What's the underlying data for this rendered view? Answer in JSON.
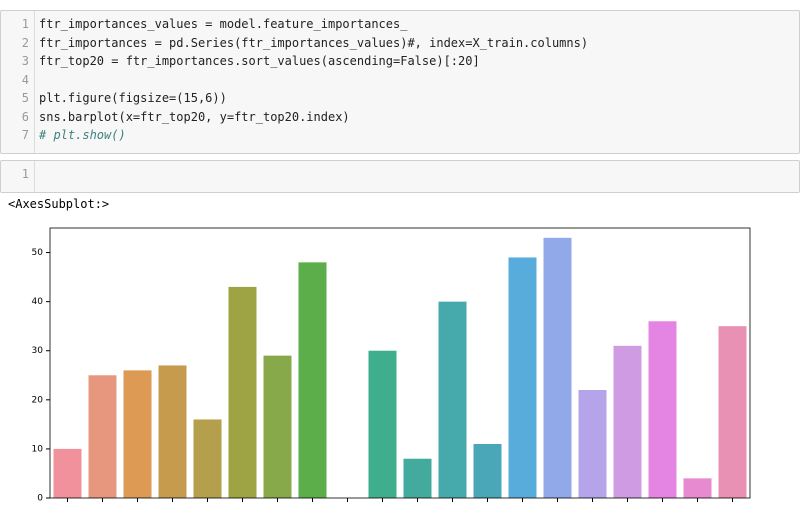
{
  "cells": [
    {
      "lines": [
        {
          "n": 1,
          "code": "ftr_importances_values = model.feature_importances_"
        },
        {
          "n": 2,
          "code": "ftr_importances = pd.Series(ftr_importances_values)#, index=X_train.columns)"
        },
        {
          "n": 3,
          "code": "ftr_top20 = ftr_importances.sort_values(ascending=False)[:20]"
        },
        {
          "n": 4
        },
        {
          "n": 5,
          "code": "plt.figure(figsize=(15,6))"
        },
        {
          "n": 6,
          "code": "sns.barplot(x=ftr_top20, y=ftr_top20.index)"
        },
        {
          "n": 7,
          "code": "# plt.show()"
        }
      ]
    },
    {
      "lines": [
        {
          "n": 1
        }
      ]
    }
  ],
  "output": "<AxesSubplot:>",
  "chart_data": {
    "type": "bar",
    "categories": [
      null,
      null,
      null,
      null,
      null,
      null,
      null,
      null,
      null,
      null,
      null,
      null,
      null,
      null,
      null,
      null,
      null,
      null,
      null,
      null
    ],
    "values": [
      10,
      25,
      26,
      27,
      16,
      43,
      29,
      48,
      0,
      30,
      8,
      40,
      11,
      49,
      53,
      22,
      31,
      36,
      4,
      35
    ],
    "colors": [
      "#f0919b",
      "#e8977f",
      "#dd9a55",
      "#c79b4d",
      "#b4a04c",
      "#9ea443",
      "#88a94a",
      "#5cae4a",
      "#44ae6c",
      "#3fae8c",
      "#42ab9d",
      "#46a9ab",
      "#49a7b8",
      "#58acdb",
      "#91a9e9",
      "#b6a4ea",
      "#cf9be3",
      "#e485e3",
      "#e88ad0",
      "#e891b4"
    ],
    "ylim": [
      0,
      55
    ],
    "yticks": [
      0,
      10,
      20,
      30,
      40,
      50
    ]
  }
}
